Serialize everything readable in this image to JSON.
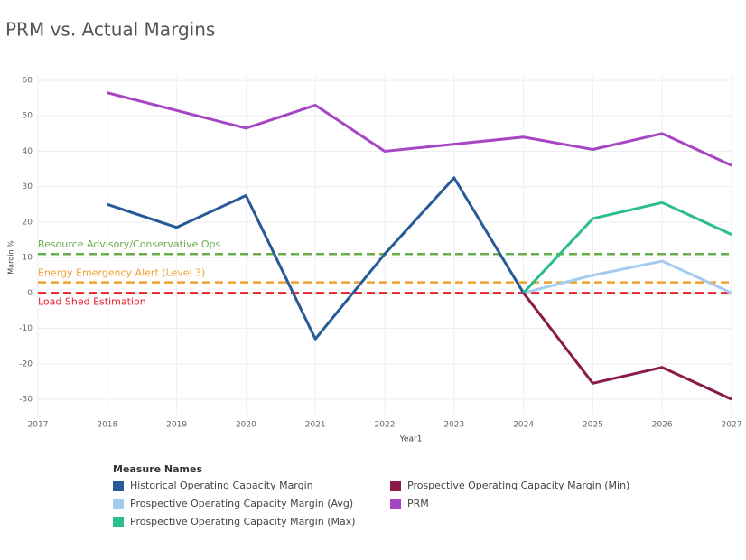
{
  "chart_data": {
    "type": "line",
    "title": "PRM vs. Actual Margins",
    "x_label": "Year1",
    "y_label": "Margin %",
    "x": [
      2018,
      2019,
      2020,
      2021,
      2022,
      2023,
      2024,
      2025,
      2026,
      2027
    ],
    "xlim": [
      2017,
      2027
    ],
    "xticks": [
      2017,
      2018,
      2019,
      2020,
      2021,
      2022,
      2023,
      2024,
      2025,
      2026,
      2027
    ],
    "ylim": [
      -30,
      60
    ],
    "yticks": [
      -30,
      -20,
      -10,
      0,
      10,
      20,
      30,
      40,
      50,
      60
    ],
    "grid": true,
    "legend_title": "Measure Names",
    "series": [
      {
        "name": "Historical Operating Capacity Margin",
        "color": "#285a98",
        "values": [
          25,
          18.5,
          27.5,
          -13,
          11,
          32.5,
          0,
          null,
          null,
          null
        ]
      },
      {
        "name": "Prospective Operating Capacity Margin (Avg)",
        "color": "#a5caf0",
        "values": [
          null,
          null,
          null,
          null,
          null,
          null,
          0,
          5,
          9,
          0
        ]
      },
      {
        "name": "Prospective Operating Capacity Margin (Max)",
        "color": "#2bbd8c",
        "values": [
          null,
          null,
          null,
          null,
          null,
          null,
          0,
          21,
          25.5,
          16.5
        ]
      },
      {
        "name": "Prospective Operating Capacity Margin (Min)",
        "color": "#8a1a4a",
        "values": [
          null,
          null,
          null,
          null,
          null,
          null,
          0,
          -25.5,
          -21,
          -30
        ]
      },
      {
        "name": "PRM",
        "color": "#a646c4",
        "values": [
          56.5,
          51.5,
          46.5,
          53,
          40,
          42,
          44,
          40.5,
          45,
          36
        ]
      }
    ],
    "reference_lines": [
      {
        "label": "Resource Advisory/Conservative Ops",
        "value": 11,
        "color": "#6aae4a"
      },
      {
        "label": "Energy Emergency Alert (Level 3)",
        "value": 3,
        "color": "#f0a030"
      },
      {
        "label": "Load Shed Estimation",
        "value": 0,
        "color": "#e8202a"
      }
    ]
  }
}
